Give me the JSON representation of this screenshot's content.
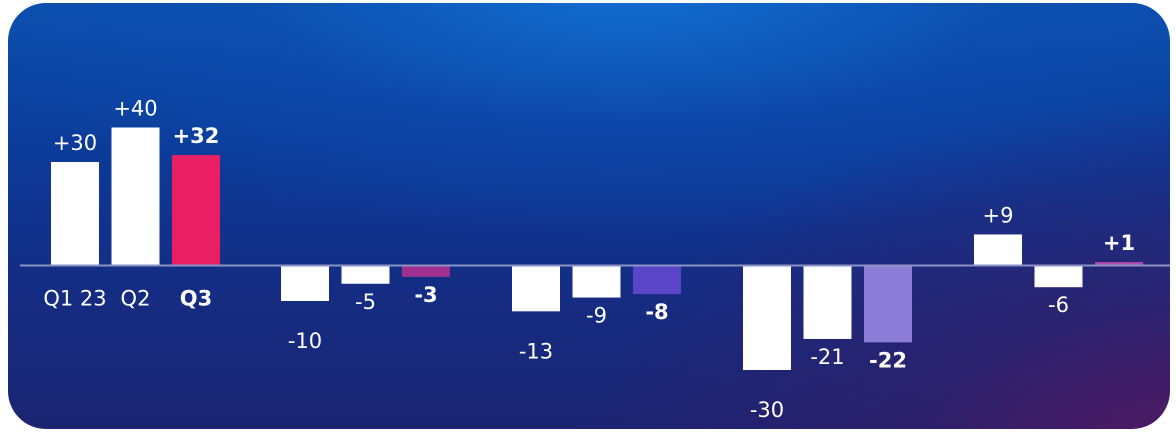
{
  "chart_data": {
    "type": "bar",
    "axis_at": 0,
    "groups": [
      {
        "bars": [
          {
            "value": 30,
            "label": "+30",
            "category": "Q1 23",
            "color": "#ffffff",
            "bold": false
          },
          {
            "value": 40,
            "label": "+40",
            "category": "Q2",
            "color": "#ffffff",
            "bold": false
          },
          {
            "value": 32,
            "label": "+32",
            "category": "Q3",
            "color": "#e91e63",
            "bold": true
          }
        ]
      },
      {
        "bars": [
          {
            "value": -10,
            "label": "-10",
            "color": "#ffffff",
            "bold": false
          },
          {
            "value": -5,
            "label": "-5",
            "color": "#ffffff",
            "bold": false
          },
          {
            "value": -3,
            "label": "-3",
            "color": "#a0308f",
            "bold": true
          }
        ]
      },
      {
        "bars": [
          {
            "value": -13,
            "label": "-13",
            "color": "#ffffff",
            "bold": false
          },
          {
            "value": -9,
            "label": "-9",
            "color": "#ffffff",
            "bold": false
          },
          {
            "value": -8,
            "label": "-8",
            "color": "#5b45c8",
            "bold": true
          }
        ]
      },
      {
        "bars": [
          {
            "value": -30,
            "label": "-30",
            "color": "#ffffff",
            "bold": false
          },
          {
            "value": -21,
            "label": "-21",
            "color": "#ffffff",
            "bold": false
          },
          {
            "value": -22,
            "label": "-22",
            "color": "#8c7ed8",
            "bold": true
          }
        ]
      },
      {
        "bars": [
          {
            "value": 9,
            "label": "+9",
            "color": "#ffffff",
            "bold": false
          },
          {
            "value": -6,
            "label": "-6",
            "color": "#ffffff",
            "bold": false
          },
          {
            "value": 1,
            "label": "+1",
            "color": "#b04aa8",
            "bold": true
          }
        ]
      }
    ],
    "colors": {
      "axis": "#8a93c4"
    }
  }
}
